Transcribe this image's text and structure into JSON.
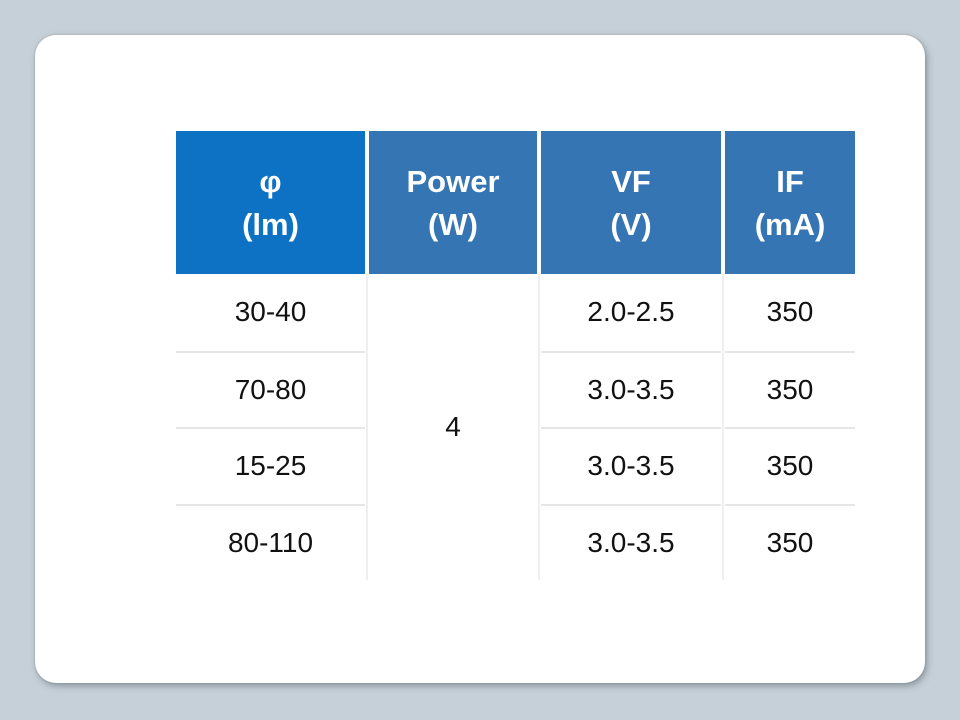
{
  "slide": {
    "background_color": "#C6D0D8",
    "card_color": "#FFFFFF"
  },
  "table": {
    "columns": [
      {
        "key": "phi",
        "line1": "φ",
        "line2": "(lm)"
      },
      {
        "key": "power",
        "line1": "Power",
        "line2": "(W)"
      },
      {
        "key": "vf",
        "line1": "VF",
        "line2": "(V)"
      },
      {
        "key": "if",
        "line1": "IF",
        "line2": "(mA)"
      }
    ],
    "header_colors": {
      "phi": "#0D72C4",
      "power": "#3575B4",
      "vf": "#3575B4",
      "if": "#3575B4"
    },
    "header_text_color": "#FFFFFF",
    "body_text_color": "#111111",
    "row_border_color": "#E6E6E6",
    "column_separator_color": "#EFEFEF",
    "power_span_value": "4",
    "rows": [
      {
        "phi": "30-40",
        "vf": "2.0-2.5",
        "if": "350"
      },
      {
        "phi": "70-80",
        "vf": "3.0-3.5",
        "if": "350"
      },
      {
        "phi": "15-25",
        "vf": "3.0-3.5",
        "if": "350"
      },
      {
        "phi": "80-110",
        "vf": "3.0-3.5",
        "if": "350"
      }
    ]
  }
}
